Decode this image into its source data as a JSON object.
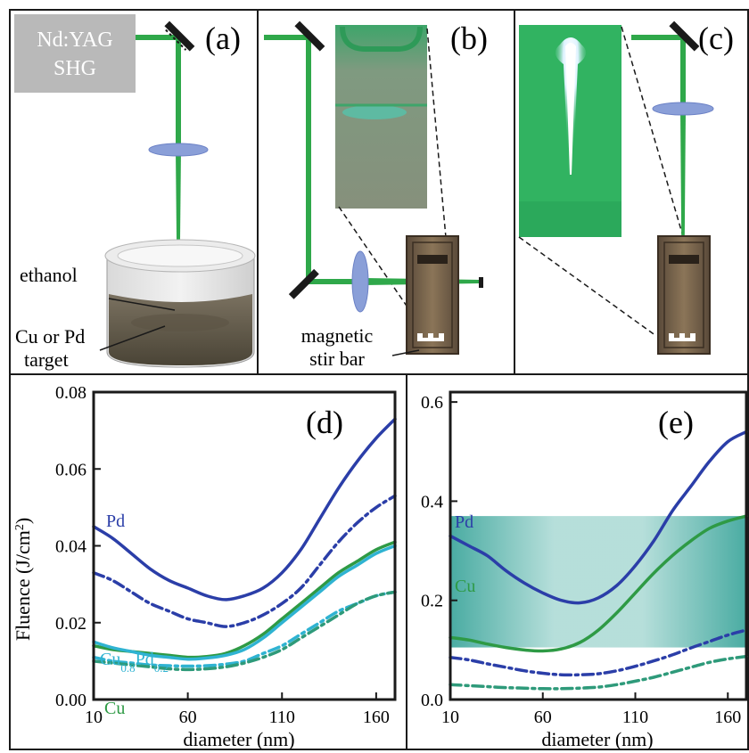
{
  "panels": {
    "a": {
      "label": "(a)",
      "source_line1": "Nd:YAG",
      "source_line2": "SHG",
      "liquid_label": "ethanol",
      "target_line1": "Cu or Pd",
      "target_line2": "target"
    },
    "b": {
      "label": "(b)",
      "stir_line1": "magnetic",
      "stir_line2": "stir bar"
    },
    "c": {
      "label": "(c)"
    },
    "d": {
      "label": "(d)"
    },
    "e": {
      "label": "(e)"
    }
  },
  "colors": {
    "laser": "#2fa84a",
    "pd": "#2b3ea8",
    "cu": "#2e9a45",
    "alloy": "#2fb3d2",
    "cu_dash": "#2e9a7a",
    "band": "#1f9c92",
    "lens": "#8a9fd8",
    "dark": "#1a1a1a",
    "grey_box": "#b9b9b9"
  },
  "chart_data": [
    {
      "id": "d",
      "type": "line",
      "xlabel": "diameter (nm)",
      "ylabel": "Fluence (J/cm²)",
      "xlim": [
        10,
        170
      ],
      "ylim": [
        0,
        0.08
      ],
      "xticks": [
        10,
        60,
        110,
        160
      ],
      "yticks": [
        0.0,
        0.02,
        0.04,
        0.06,
        0.08
      ],
      "ytick_labels": [
        "0.00",
        "0.02",
        "0.04",
        "0.06",
        "0.08"
      ],
      "labels": {
        "pd": "Pd",
        "alloy_base1": "Cu",
        "alloy_sub1": "0.8",
        "alloy_base2": "Pd",
        "alloy_sub2": "0.2",
        "cu": "Cu"
      },
      "series": [
        {
          "key": "pd_solid",
          "color": "pd",
          "style": "solid",
          "x": [
            10,
            20,
            30,
            40,
            50,
            60,
            70,
            80,
            90,
            100,
            110,
            120,
            130,
            140,
            150,
            160,
            170
          ],
          "y": [
            0.045,
            0.042,
            0.038,
            0.034,
            0.031,
            0.029,
            0.027,
            0.026,
            0.027,
            0.029,
            0.033,
            0.039,
            0.047,
            0.055,
            0.062,
            0.068,
            0.073
          ]
        },
        {
          "key": "pd_dash",
          "color": "pd",
          "style": "dashdot",
          "x": [
            10,
            20,
            30,
            40,
            50,
            60,
            70,
            80,
            90,
            100,
            110,
            120,
            130,
            140,
            150,
            160,
            170
          ],
          "y": [
            0.033,
            0.031,
            0.028,
            0.025,
            0.023,
            0.021,
            0.02,
            0.019,
            0.02,
            0.022,
            0.025,
            0.029,
            0.035,
            0.041,
            0.046,
            0.05,
            0.053
          ]
        },
        {
          "key": "cu_solid",
          "color": "cu",
          "style": "solid",
          "x": [
            10,
            20,
            30,
            40,
            50,
            60,
            70,
            80,
            90,
            100,
            110,
            120,
            130,
            140,
            150,
            160,
            170
          ],
          "y": [
            0.014,
            0.013,
            0.0125,
            0.012,
            0.0115,
            0.011,
            0.0112,
            0.012,
            0.014,
            0.017,
            0.021,
            0.025,
            0.029,
            0.033,
            0.036,
            0.039,
            0.041
          ]
        },
        {
          "key": "alloy_solid",
          "color": "alloy",
          "style": "solid",
          "x": [
            10,
            20,
            30,
            40,
            50,
            60,
            70,
            80,
            90,
            100,
            110,
            120,
            130,
            140,
            150,
            160,
            170
          ],
          "y": [
            0.015,
            0.0135,
            0.0125,
            0.0115,
            0.011,
            0.0105,
            0.0108,
            0.0115,
            0.013,
            0.016,
            0.02,
            0.024,
            0.028,
            0.032,
            0.035,
            0.038,
            0.04
          ]
        },
        {
          "key": "alloy_dash",
          "color": "alloy",
          "style": "dashdot",
          "x": [
            10,
            20,
            30,
            40,
            50,
            60,
            70,
            80,
            90,
            100,
            110,
            120,
            130,
            140,
            150,
            160,
            170
          ],
          "y": [
            0.011,
            0.01,
            0.0095,
            0.009,
            0.0088,
            0.0087,
            0.0088,
            0.0092,
            0.01,
            0.012,
            0.014,
            0.017,
            0.02,
            0.023,
            0.025,
            0.027,
            0.028
          ]
        },
        {
          "key": "cu_dash",
          "color": "cu_dash",
          "style": "dashdot",
          "x": [
            10,
            20,
            30,
            40,
            50,
            60,
            70,
            80,
            90,
            100,
            110,
            120,
            130,
            140,
            150,
            160,
            170
          ],
          "y": [
            0.01,
            0.0095,
            0.009,
            0.0085,
            0.008,
            0.0078,
            0.008,
            0.0085,
            0.0095,
            0.011,
            0.013,
            0.016,
            0.019,
            0.022,
            0.025,
            0.027,
            0.028
          ]
        }
      ]
    },
    {
      "id": "e",
      "type": "line",
      "xlabel": "diameter (nm)",
      "ylabel": "",
      "xlim": [
        10,
        170
      ],
      "ylim": [
        0,
        0.62
      ],
      "xticks": [
        10,
        60,
        110,
        160
      ],
      "yticks": [
        0.0,
        0.2,
        0.4,
        0.6
      ],
      "ytick_labels": [
        "0.0",
        "0.2",
        "0.4",
        "0.6"
      ],
      "band": [
        0.105,
        0.37
      ],
      "labels": {
        "pd": "Pd",
        "cu": "Cu"
      },
      "series": [
        {
          "key": "pd_solid",
          "color": "pd",
          "style": "solid",
          "x": [
            10,
            20,
            30,
            40,
            50,
            60,
            70,
            80,
            90,
            100,
            110,
            120,
            130,
            140,
            150,
            160,
            170
          ],
          "y": [
            0.33,
            0.31,
            0.29,
            0.26,
            0.235,
            0.215,
            0.2,
            0.195,
            0.205,
            0.23,
            0.27,
            0.32,
            0.38,
            0.43,
            0.48,
            0.52,
            0.54
          ]
        },
        {
          "key": "cu_solid",
          "color": "cu",
          "style": "solid",
          "x": [
            10,
            20,
            30,
            40,
            50,
            60,
            70,
            80,
            90,
            100,
            110,
            120,
            130,
            140,
            150,
            160,
            170
          ],
          "y": [
            0.125,
            0.12,
            0.112,
            0.105,
            0.1,
            0.098,
            0.102,
            0.115,
            0.14,
            0.175,
            0.215,
            0.255,
            0.29,
            0.32,
            0.345,
            0.36,
            0.37
          ]
        },
        {
          "key": "pd_dash",
          "color": "pd",
          "style": "dashdot",
          "x": [
            10,
            20,
            30,
            40,
            50,
            60,
            70,
            80,
            90,
            100,
            110,
            120,
            130,
            140,
            150,
            160,
            170
          ],
          "y": [
            0.085,
            0.08,
            0.072,
            0.065,
            0.058,
            0.053,
            0.05,
            0.05,
            0.052,
            0.058,
            0.067,
            0.078,
            0.09,
            0.104,
            0.117,
            0.13,
            0.14
          ]
        },
        {
          "key": "cu_dash",
          "color": "cu_dash",
          "style": "dashdot",
          "x": [
            10,
            20,
            30,
            40,
            50,
            60,
            70,
            80,
            90,
            100,
            110,
            120,
            130,
            140,
            150,
            160,
            170
          ],
          "y": [
            0.03,
            0.028,
            0.026,
            0.024,
            0.023,
            0.022,
            0.022,
            0.023,
            0.025,
            0.03,
            0.037,
            0.045,
            0.055,
            0.065,
            0.075,
            0.082,
            0.087
          ]
        }
      ]
    }
  ]
}
